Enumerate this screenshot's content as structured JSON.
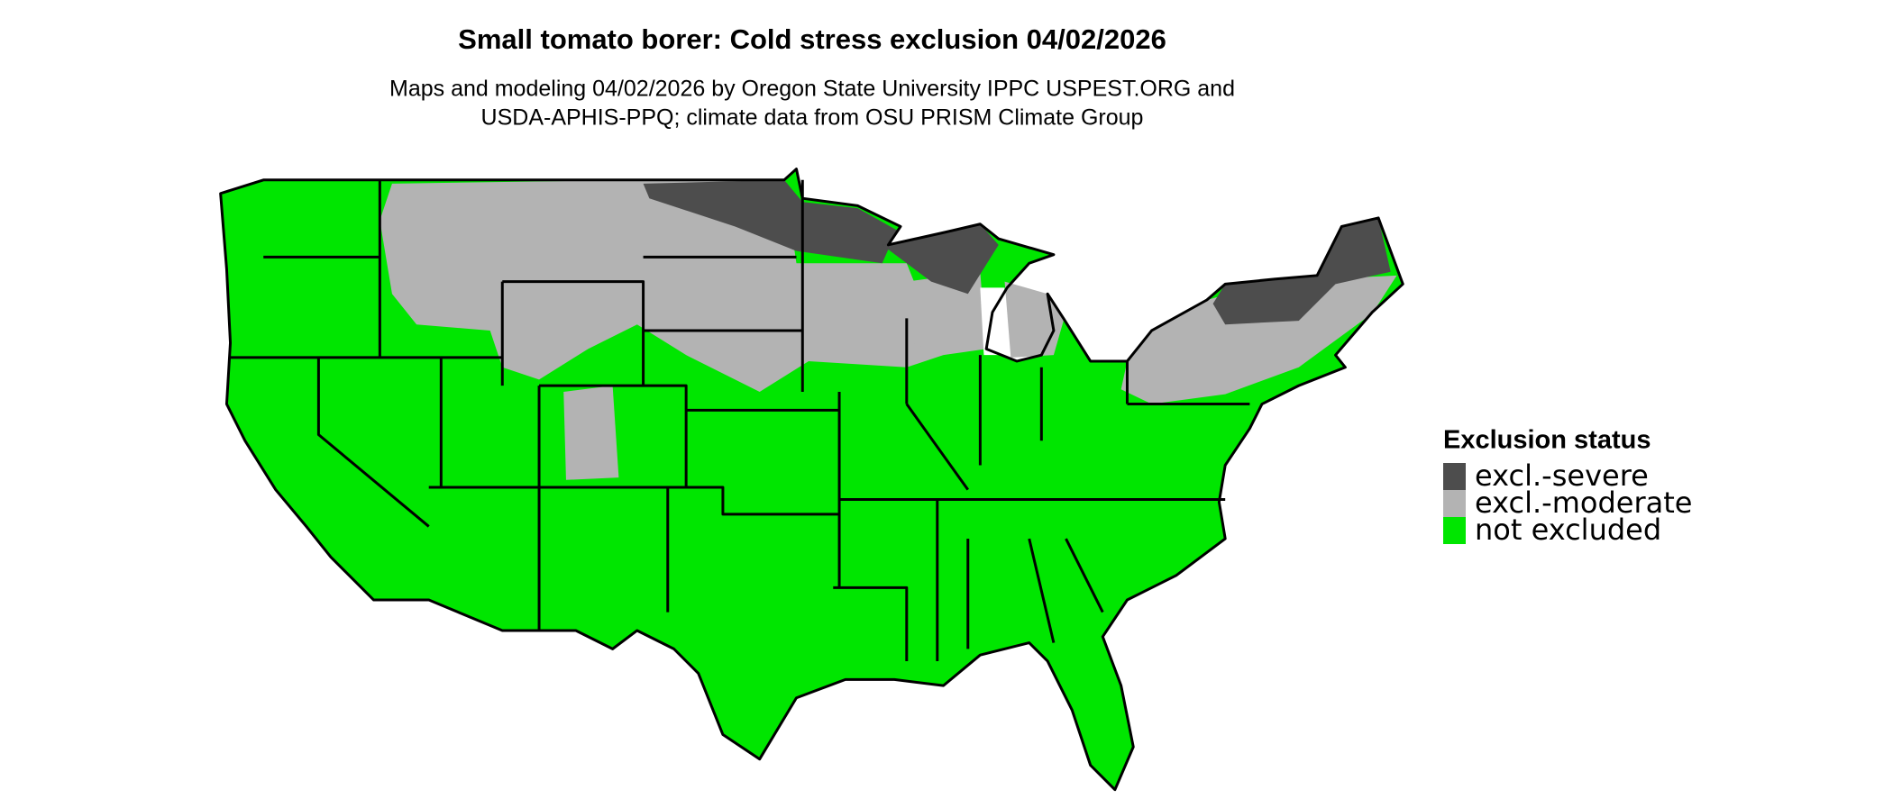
{
  "title": "Small tomato borer: Cold stress exclusion 04/02/2026",
  "subtitle": [
    "Maps and modeling 04/02/2026 by Oregon State University IPPC USPEST.ORG and",
    "USDA-APHIS-PPQ; climate data from OSU PRISM Climate Group"
  ],
  "legend": {
    "title": "Exclusion status",
    "items": [
      {
        "label": "excl.-severe",
        "color": "#4d4d4d"
      },
      {
        "label": "excl.-moderate",
        "color": "#b3b3b3"
      },
      {
        "label": "not excluded",
        "color": "#00e600"
      }
    ]
  }
}
